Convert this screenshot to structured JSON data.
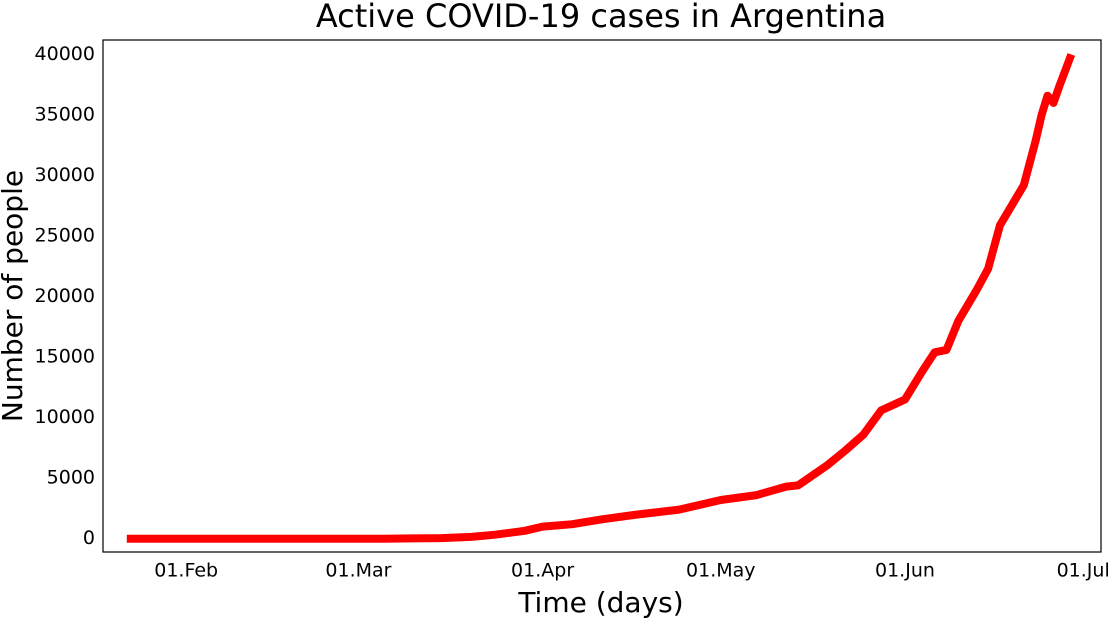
{
  "chart_data": {
    "type": "line",
    "title": "Active COVID-19 cases in Argentina",
    "x_label": "Time (days)",
    "y_label": "Number of people",
    "x": [
      "22.Jan",
      "01.Feb",
      "15.Feb",
      "01.Mar",
      "05.Mar",
      "10.Mar",
      "15.Mar",
      "20.Mar",
      "24.Mar",
      "29.Mar",
      "01.Apr",
      "06.Apr",
      "11.Apr",
      "17.Apr",
      "24.Apr",
      "01.May",
      "07.May",
      "12.May",
      "14.May",
      "19.May",
      "22.May",
      "25.May",
      "28.May",
      "01.Jun",
      "04.Jun",
      "06.Jun",
      "08.Jun",
      "10.Jun",
      "13.Jun",
      "15.Jun",
      "17.Jun",
      "21.Jun",
      "23.Jun",
      "24.Jun",
      "25.Jun",
      "26.Jun",
      "27.Jun",
      "29.Jun"
    ],
    "series": [
      {
        "name": "Active cases",
        "color": "#ff0000",
        "values": [
          0,
          0,
          0,
          0,
          1,
          20,
          50,
          150,
          330,
          650,
          1000,
          1200,
          1600,
          2000,
          2400,
          3200,
          3600,
          4300,
          4400,
          6100,
          7300,
          8600,
          10600,
          11500,
          13900,
          15400,
          15600,
          18000,
          20500,
          22300,
          25900,
          29200,
          32900,
          35000,
          36600,
          36000,
          37400,
          40000
        ]
      }
    ],
    "xlim": [
      "18.Jan",
      "04.Jul"
    ],
    "xticks": [
      "01.Feb",
      "01.Mar",
      "01.Apr",
      "01.May",
      "01.Jun",
      "01.Jul"
    ],
    "ylim": [
      -1100,
      41200
    ],
    "yticks": [
      0,
      5000,
      10000,
      15000,
      20000,
      25000,
      30000,
      35000,
      40000
    ],
    "grid": false
  }
}
